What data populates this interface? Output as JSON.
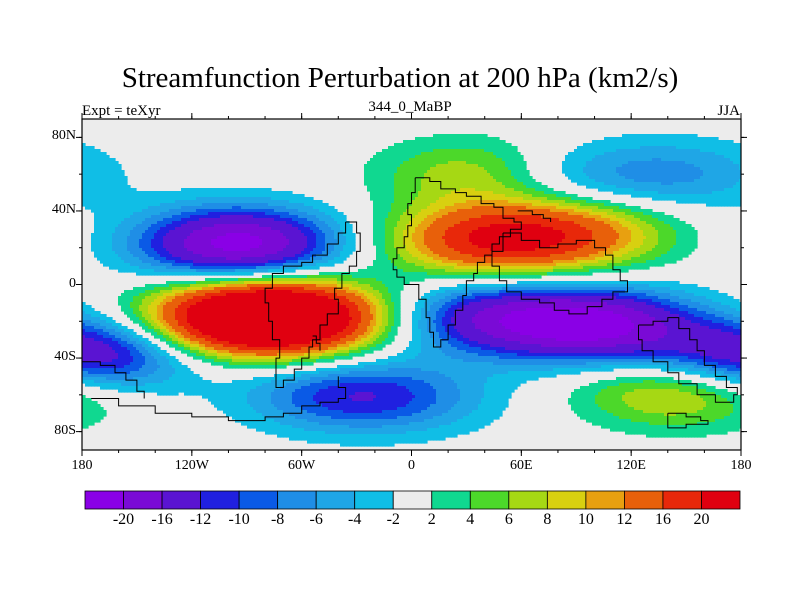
{
  "title": "Streamfunction Perturbation at 200 hPa (km2/s)",
  "left_string": "Expt = teXyr",
  "center_string": "344_0_MaBP",
  "right_string": "JJA",
  "chart_data": {
    "type": "heatmap",
    "projection": "cylindrical-equidistant",
    "x_ticks": [
      "180",
      "120W",
      "60W",
      "0",
      "60E",
      "120E",
      "180"
    ],
    "x_tick_values": [
      -180,
      -120,
      -60,
      0,
      60,
      120,
      180
    ],
    "y_ticks": [
      "80N",
      "40N",
      "0",
      "40S",
      "80S"
    ],
    "y_tick_values": [
      80,
      40,
      0,
      -40,
      -80
    ],
    "xlim": [
      -180,
      180
    ],
    "ylim": [
      -90,
      90
    ],
    "colorbar": {
      "labels": [
        "-20",
        "-16",
        "-12",
        "-10",
        "-8",
        "-6",
        "-4",
        "-2",
        "2",
        "4",
        "6",
        "8",
        "10",
        "12",
        "16",
        "20"
      ],
      "colors": [
        "#8a00e6",
        "#7a0ad6",
        "#5a14d2",
        "#2020e0",
        "#0a5ae6",
        "#1f8ee6",
        "#1fa6e6",
        "#10bee6",
        "#ececec",
        "#10d890",
        "#4cd82a",
        "#a6d814",
        "#d8d010",
        "#e8a010",
        "#e8600a",
        "#e8280a",
        "#e00010"
      ]
    },
    "field_features": [
      {
        "lon": -95,
        "lat": 22,
        "value": -22
      },
      {
        "lon": -65,
        "lat": -18,
        "value": 24
      },
      {
        "lon": -95,
        "lat": -18,
        "value": 20
      },
      {
        "lon": 40,
        "lat": 24,
        "value": 17
      },
      {
        "lon": 100,
        "lat": -22,
        "value": -20
      },
      {
        "lon": 40,
        "lat": -18,
        "value": -13
      },
      {
        "lon": -40,
        "lat": -60,
        "value": -9
      },
      {
        "lon": 40,
        "lat": 60,
        "value": 10
      },
      {
        "lon": 75,
        "lat": 58,
        "value": -7
      },
      {
        "lon": 145,
        "lat": 60,
        "value": -6
      },
      {
        "lon": 145,
        "lat": -58,
        "value": 10
      },
      {
        "lon": -175,
        "lat": -38,
        "value": -16
      },
      {
        "lon": 90,
        "lat": 28,
        "value": 12
      },
      {
        "lon": 0,
        "lat": -62,
        "value": -5
      }
    ]
  }
}
